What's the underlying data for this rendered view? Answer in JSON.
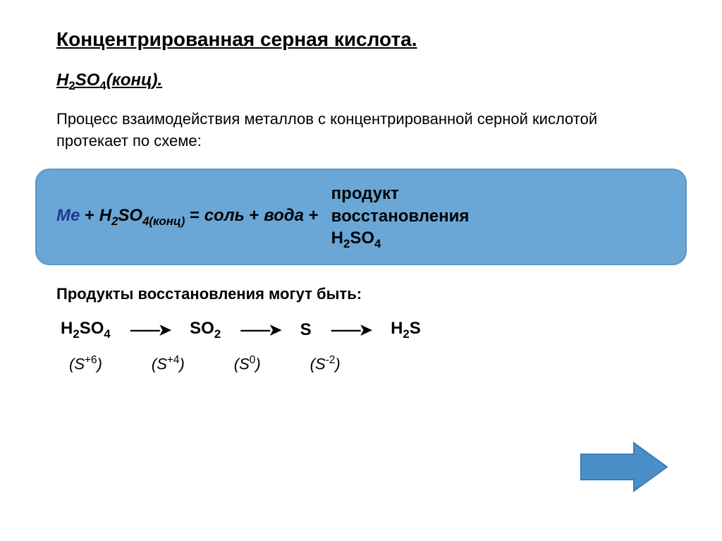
{
  "title": "Концентрированная серная кислота.",
  "formula_heading_html": "H<span class=\"sub\">2</span>SO<span class=\"sub\">4</span><span class=\"paren\">(конц).</span>",
  "description": "Процесс взаимодействия металлов с концентрированной серной кислотой протекает по схеме:",
  "scheme": {
    "left_html": "<span class=\"me\">Me</span> <span class=\"plus\">+</span> <span class=\"h2so4\">H<span class=\"sub\">2</span>SO<span class=\"sub\">4(конц)</span></span> <span class=\"eq\">=</span> <span class=\"salt\">соль</span> <span class=\"plus\">+</span> <span class=\"salt\">вода</span> <span class=\"plus\">+</span>",
    "right_html": "продукт<br>восстановления<br>H<span class=\"sub\">2</span>SO<span class=\"sub\">4</span>",
    "box_bg": "#6aa7d6",
    "box_border": "#5a96c5"
  },
  "products_label": "Продукты восстановления могут быть:",
  "chain": [
    "H<span class=\"sub\">2</span>SO<span class=\"sub\">4</span>",
    "SO<span class=\"sub\">2</span>",
    "S",
    "H<span class=\"sub\">2</span>S"
  ],
  "states": [
    "(S<span class=\"sup\">+6</span>)",
    "(S<span class=\"sup\">+4</span>)",
    "(S<span class=\"sup\">0</span>)",
    "(S<span class=\"sup\">-2</span>)"
  ],
  "arrow_color": "#4a8fc7",
  "arrow_stroke": "#3a7db5"
}
